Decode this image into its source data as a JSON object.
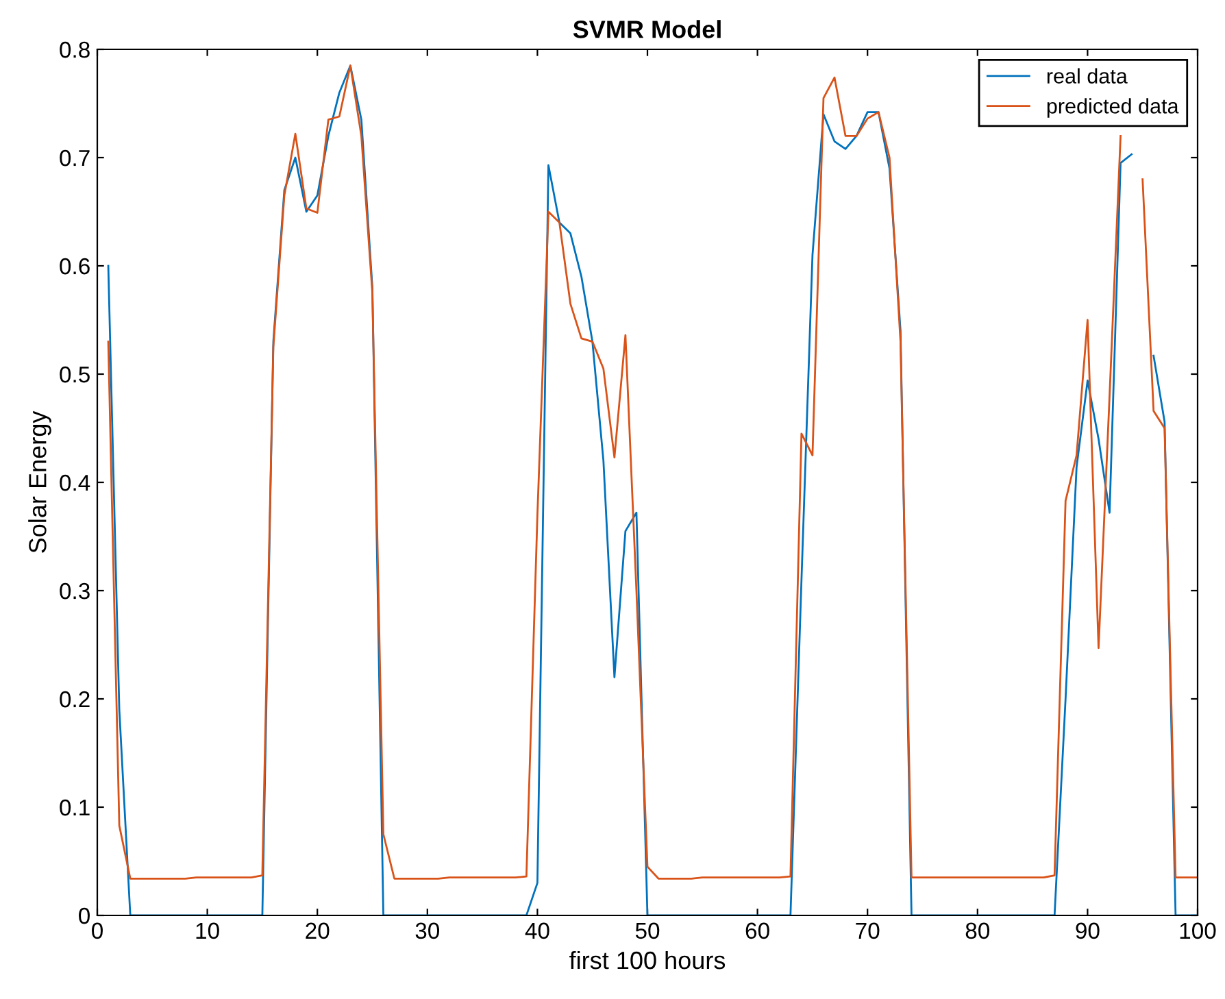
{
  "chart_data": {
    "type": "line",
    "title": "SVMR Model",
    "xlabel": "first 100 hours",
    "ylabel": "Solar Energy",
    "x": [
      1,
      2,
      3,
      4,
      5,
      6,
      7,
      8,
      9,
      10,
      11,
      12,
      13,
      14,
      15,
      16,
      17,
      18,
      19,
      20,
      21,
      22,
      23,
      24,
      25,
      26,
      27,
      28,
      29,
      30,
      31,
      32,
      33,
      34,
      35,
      36,
      37,
      38,
      39,
      40,
      41,
      42,
      43,
      44,
      45,
      46,
      47,
      48,
      49,
      50,
      51,
      52,
      53,
      54,
      55,
      56,
      57,
      58,
      59,
      60,
      61,
      62,
      63,
      64,
      65,
      66,
      67,
      68,
      69,
      70,
      71,
      72,
      73,
      74,
      75,
      76,
      77,
      78,
      79,
      80,
      81,
      82,
      83,
      84,
      85,
      86,
      87,
      88,
      89,
      90,
      91,
      92,
      93,
      94,
      95,
      96,
      97,
      98,
      99,
      100
    ],
    "series": [
      {
        "name": "real data",
        "color": "#0072bd",
        "values": [
          0.6,
          0.19,
          0,
          0,
          0,
          0,
          0,
          0,
          0,
          0,
          0,
          0,
          0,
          0,
          0,
          0.53,
          0.67,
          0.7,
          0.65,
          0.665,
          0.72,
          0.76,
          0.785,
          0.735,
          0.58,
          0,
          0,
          0,
          0,
          0,
          0,
          0,
          0,
          0,
          0,
          0,
          0,
          0,
          0,
          0.03,
          0.693,
          0.64,
          0.63,
          0.59,
          0.53,
          0.42,
          0.22,
          0.355,
          0.372,
          0,
          0,
          0,
          0,
          0,
          0,
          0,
          0,
          0,
          0,
          0,
          0,
          0,
          0,
          0.31,
          0.61,
          0.74,
          0.715,
          0.708,
          0.72,
          0.742,
          0.742,
          0.69,
          0.54,
          0,
          0,
          0,
          0,
          0,
          0,
          0,
          0,
          0,
          0,
          0,
          0,
          0,
          0,
          0.2,
          0.414,
          0.494,
          0.44,
          0.372,
          0.695,
          0.703,
          null,
          0.517,
          0.456,
          0,
          0,
          0
        ]
      },
      {
        "name": "predicted data",
        "color": "#d95319",
        "values": [
          0.53,
          0.083,
          0.034,
          0.034,
          0.034,
          0.034,
          0.034,
          0.034,
          0.035,
          0.035,
          0.035,
          0.035,
          0.035,
          0.035,
          0.037,
          0.525,
          0.665,
          0.722,
          0.653,
          0.649,
          0.735,
          0.738,
          0.785,
          0.72,
          0.575,
          0.075,
          0.034,
          0.034,
          0.034,
          0.034,
          0.034,
          0.035,
          0.035,
          0.035,
          0.035,
          0.035,
          0.035,
          0.035,
          0.036,
          0.37,
          0.65,
          0.64,
          0.565,
          0.533,
          0.53,
          0.505,
          0.423,
          0.536,
          0.3,
          0.045,
          0.034,
          0.034,
          0.034,
          0.034,
          0.035,
          0.035,
          0.035,
          0.035,
          0.035,
          0.035,
          0.035,
          0.035,
          0.036,
          0.445,
          0.425,
          0.755,
          0.774,
          0.72,
          0.72,
          0.736,
          0.742,
          0.7,
          0.53,
          0.035,
          0.035,
          0.035,
          0.035,
          0.035,
          0.035,
          0.035,
          0.035,
          0.035,
          0.035,
          0.035,
          0.035,
          0.035,
          0.037,
          0.383,
          0.425,
          0.55,
          0.247,
          0.48,
          0.72,
          null,
          0.68,
          0.466,
          0.45,
          0.035,
          0.035,
          0.035
        ]
      }
    ],
    "xlim": [
      0,
      100
    ],
    "xticks": [
      0,
      10,
      20,
      30,
      40,
      50,
      60,
      70,
      80,
      90,
      100
    ],
    "ylim": [
      0,
      0.8
    ],
    "yticks": [
      0,
      0.1,
      0.2,
      0.3,
      0.4,
      0.5,
      0.6,
      0.7,
      0.8
    ],
    "grid": false,
    "legend": "top right"
  }
}
